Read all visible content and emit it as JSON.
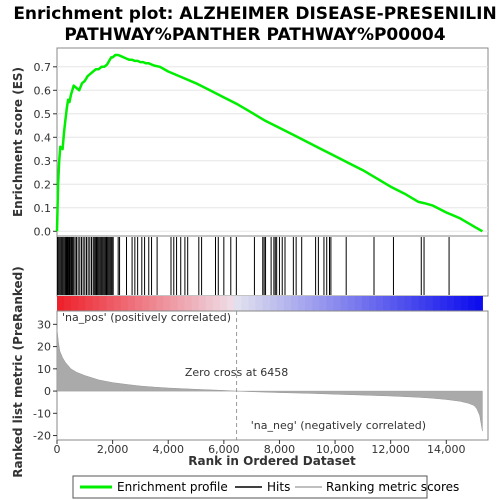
{
  "chart_data": {
    "type": "line",
    "title_line1": "Enrichment plot: ALZHEIMER DISEASE-PRESENILIN",
    "title_line2": "PATHWAY%PANTHER PATHWAY%P00004",
    "es_panel": {
      "ylabel": "Enrichment score (ES)",
      "ylim": [
        -0.02,
        0.78
      ],
      "yticks": [
        0.0,
        0.1,
        0.2,
        0.3,
        0.4,
        0.5,
        0.6,
        0.7
      ],
      "ytick_labels": [
        "0.0",
        "0.1",
        "0.2",
        "0.3",
        "0.4",
        "0.5",
        "0.6",
        "0.7"
      ],
      "series": [
        {
          "name": "Enrichment profile",
          "color": "#00ee00",
          "x": [
            0,
            40,
            80,
            120,
            200,
            250,
            300,
            350,
            400,
            450,
            500,
            600,
            700,
            800,
            900,
            1000,
            1100,
            1200,
            1300,
            1400,
            1500,
            1600,
            1700,
            1800,
            1900,
            1950,
            2000,
            2100,
            2200,
            2300,
            2400,
            2500,
            2600,
            2700,
            2800,
            2900,
            3000,
            3100,
            3200,
            3300,
            3400,
            3500,
            3700,
            4000,
            4500,
            5000,
            5500,
            6000,
            6500,
            7000,
            7500,
            8000,
            8500,
            9000,
            9500,
            10000,
            10500,
            11000,
            11500,
            12000,
            12500,
            13000,
            13200,
            13500,
            14000,
            14200,
            14500,
            15000,
            15300
          ],
          "y": [
            0.0,
            0.2,
            0.3,
            0.36,
            0.35,
            0.42,
            0.47,
            0.52,
            0.56,
            0.55,
            0.58,
            0.62,
            0.61,
            0.6,
            0.63,
            0.64,
            0.66,
            0.67,
            0.68,
            0.69,
            0.69,
            0.7,
            0.7,
            0.71,
            0.73,
            0.74,
            0.74,
            0.75,
            0.75,
            0.745,
            0.74,
            0.735,
            0.73,
            0.73,
            0.725,
            0.725,
            0.72,
            0.72,
            0.715,
            0.715,
            0.71,
            0.705,
            0.7,
            0.68,
            0.655,
            0.63,
            0.6,
            0.57,
            0.54,
            0.505,
            0.47,
            0.44,
            0.41,
            0.38,
            0.35,
            0.32,
            0.29,
            0.26,
            0.225,
            0.19,
            0.16,
            0.125,
            0.12,
            0.11,
            0.08,
            0.07,
            0.055,
            0.02,
            0.0
          ]
        }
      ]
    },
    "hits": {
      "name": "Hits",
      "positions": [
        20,
        60,
        100,
        140,
        180,
        220,
        260,
        300,
        330,
        360,
        390,
        420,
        450,
        480,
        520,
        560,
        600,
        650,
        700,
        760,
        820,
        880,
        940,
        1000,
        1060,
        1120,
        1180,
        1240,
        1300,
        1340,
        1380,
        1420,
        1460,
        1500,
        1540,
        1580,
        1620,
        1660,
        1700,
        1740,
        1780,
        1820,
        1860,
        1900,
        1940,
        1980,
        2020,
        2200,
        2250,
        2500,
        2700,
        2800,
        2900,
        3050,
        3150,
        3300,
        3400,
        3600,
        4100,
        4200,
        4300,
        4450,
        4600,
        4700,
        5100,
        5200,
        5700,
        5800,
        6000,
        6250,
        6450,
        7100,
        7400,
        7450,
        7500,
        7700,
        7800,
        7850,
        7900,
        8000,
        8100,
        8200,
        8500,
        8600,
        8800,
        9300,
        9400,
        9600,
        9700,
        9800,
        9850,
        10400,
        11400,
        12100,
        13100,
        13200,
        14100
      ]
    },
    "rank_panel": {
      "ylabel": "Ranked list metric (PreRanked)",
      "ylim": [
        -22,
        36
      ],
      "yticks": [
        -20,
        -10,
        0,
        10,
        20,
        30
      ],
      "ytick_labels": [
        "-20",
        "-10",
        "0",
        "10",
        "20",
        "30"
      ],
      "metric_x": [
        0,
        50,
        100,
        200,
        300,
        500,
        700,
        1000,
        1500,
        2000,
        2500,
        3000,
        3500,
        4000,
        5000,
        6000,
        6458,
        7000,
        8000,
        9000,
        10000,
        11000,
        12000,
        13000,
        13500,
        14000,
        14500,
        14800,
        15000,
        15100,
        15200,
        15300
      ],
      "metric_y": [
        28,
        22,
        18,
        15,
        13,
        10,
        8.5,
        7,
        5,
        3.8,
        3,
        2.3,
        1.8,
        1.4,
        0.8,
        0.3,
        0.0,
        -0.3,
        -0.7,
        -1.0,
        -1.4,
        -1.8,
        -2.2,
        -2.8,
        -3.2,
        -3.8,
        -4.6,
        -5.5,
        -6.5,
        -8,
        -11,
        -18
      ],
      "metric_series_name": "Ranking metric scores",
      "metric_color": "#aaaaaa",
      "zero_cross": 6458,
      "zero_cross_label": "Zero cross at 6458",
      "pos_label": "'na_pos' (positively correlated)",
      "neg_label": "'na_neg' (negatively correlated)",
      "pos_color": "#ee0000",
      "neg_color": "#0000ee"
    },
    "xaxis": {
      "xlabel": "Rank in Ordered Dataset",
      "xlim": [
        0,
        15500
      ],
      "xticks": [
        0,
        2000,
        4000,
        6000,
        8000,
        10000,
        12000,
        14000
      ],
      "xtick_labels": [
        "0",
        "2,000",
        "4,000",
        "6,000",
        "8,000",
        "10,000",
        "12,000",
        "14,000"
      ]
    },
    "legend": {
      "position": "bottom",
      "items": [
        {
          "label": "Enrichment profile",
          "color": "#00ee00"
        },
        {
          "label": "Hits",
          "color": "#000000"
        },
        {
          "label": "Ranking metric scores",
          "color": "#aaaaaa"
        }
      ]
    }
  }
}
